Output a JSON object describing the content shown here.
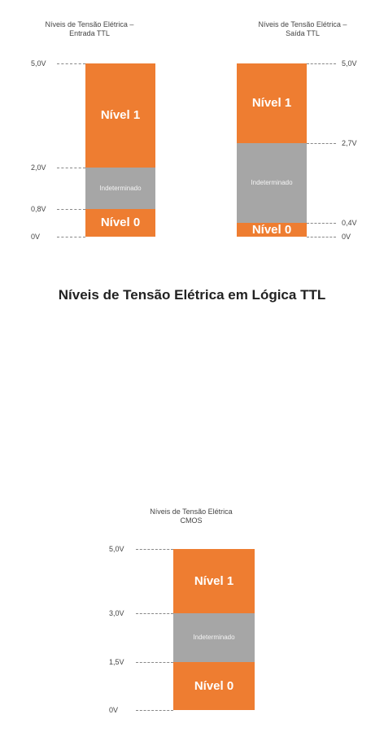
{
  "colors": {
    "level": "#ee7d31",
    "undetermined": "#a6a6a6",
    "text": "#444444"
  },
  "main_title": "Níveis de Tensão Elétrica em Lógica TTL",
  "panels": [
    {
      "id": "ttl-input",
      "title_line1": "Níveis de Tensão Elétrica –",
      "title_line2": "Entrada TTL",
      "label_side": "left",
      "segments": [
        {
          "from": 2.0,
          "to": 5.0,
          "label": "Nível 1",
          "kind": "level"
        },
        {
          "from": 0.8,
          "to": 2.0,
          "label": "Indeterminado",
          "kind": "undetermined"
        },
        {
          "from": 0.0,
          "to": 0.8,
          "label": "Nível 0",
          "kind": "level"
        }
      ],
      "ticks": [
        {
          "value": 5.0,
          "label": "5,0V"
        },
        {
          "value": 2.0,
          "label": "2,0V"
        },
        {
          "value": 0.8,
          "label": "0,8V"
        },
        {
          "value": 0.0,
          "label": "0V"
        }
      ]
    },
    {
      "id": "ttl-output",
      "title_line1": "Níveis de Tensão Elétrica –",
      "title_line2": "Saída TTL",
      "label_side": "right",
      "segments": [
        {
          "from": 2.7,
          "to": 5.0,
          "label": "Nível 1",
          "kind": "level"
        },
        {
          "from": 0.4,
          "to": 2.7,
          "label": "Indeterminado",
          "kind": "undetermined"
        },
        {
          "from": 0.0,
          "to": 0.4,
          "label": "Nível 0",
          "kind": "level"
        }
      ],
      "ticks": [
        {
          "value": 5.0,
          "label": "5,0V"
        },
        {
          "value": 2.7,
          "label": "2,7V"
        },
        {
          "value": 0.4,
          "label": "0,4V"
        },
        {
          "value": 0.0,
          "label": "0V"
        }
      ]
    },
    {
      "id": "cmos",
      "title_line1": "Níveis de Tensão Elétrica",
      "title_line2": "CMOS",
      "label_side": "left",
      "segments": [
        {
          "from": 3.0,
          "to": 5.0,
          "label": "Nível 1",
          "kind": "level"
        },
        {
          "from": 1.5,
          "to": 3.0,
          "label": "Indeterminado",
          "kind": "undetermined"
        },
        {
          "from": 0.0,
          "to": 1.5,
          "label": "Nível 0",
          "kind": "level"
        }
      ],
      "ticks": [
        {
          "value": 5.0,
          "label": "5,0V"
        },
        {
          "value": 3.0,
          "label": "3,0V"
        },
        {
          "value": 1.5,
          "label": "1,5V"
        },
        {
          "value": 0.0,
          "label": "0V"
        }
      ]
    }
  ]
}
